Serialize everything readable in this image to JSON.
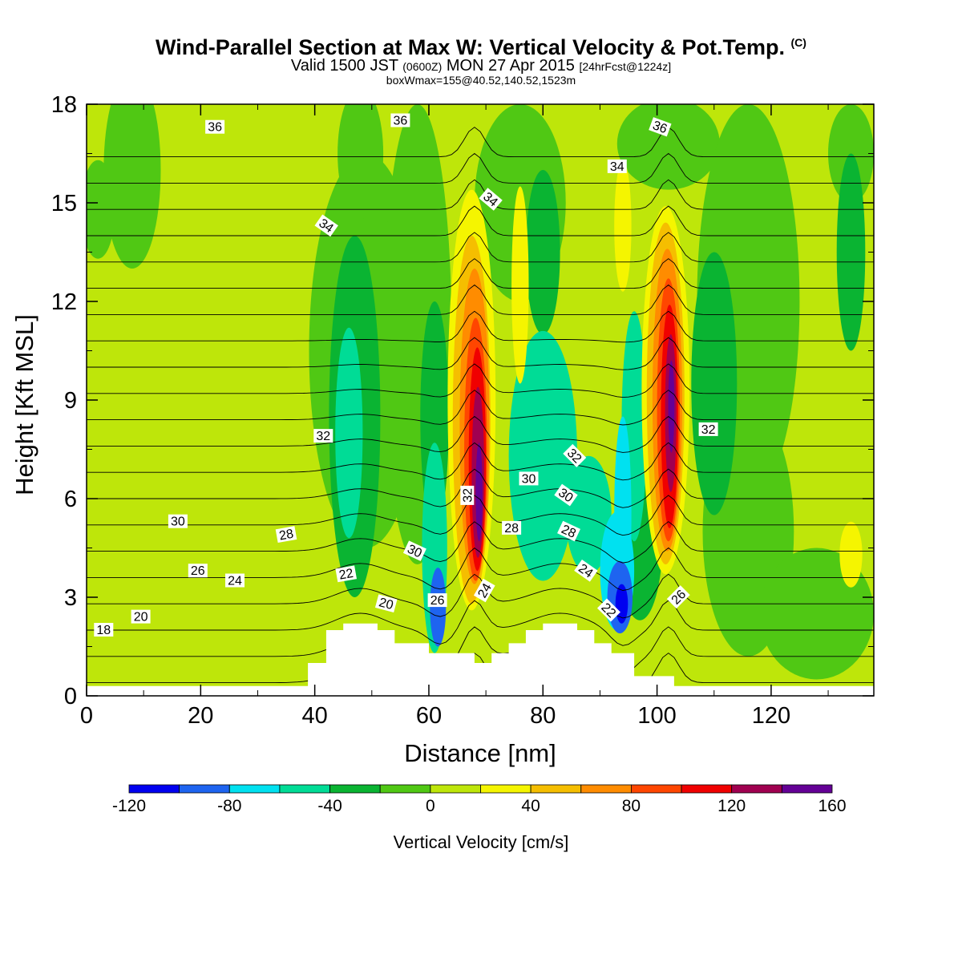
{
  "title": {
    "main": "Wind-Parallel Section at Max W: Vertical Velocity & Pot.Temp.",
    "copyright": "(C)",
    "valid_prefix": "Valid 1500 JST",
    "valid_utc": "(0600Z)",
    "valid_date": "MON 27 Apr 2015",
    "forecast": "[24hrFcst@1224z]",
    "box": "boxWmax=155@40.52,140.52,1523m"
  },
  "chart_data": {
    "type": "heatmap",
    "xlabel": "Distance [nm]",
    "ylabel": "Height [Kft MSL]",
    "xlim": [
      0,
      138
    ],
    "ylim": [
      0,
      18
    ],
    "x_ticks": [
      0,
      20,
      40,
      60,
      80,
      100,
      120
    ],
    "y_ticks": [
      0,
      3,
      6,
      9,
      12,
      15,
      18
    ],
    "grid": false,
    "colorbar": {
      "title": "Vertical Velocity [cm/s]",
      "levels": [
        -120,
        -100,
        -80,
        -60,
        -40,
        -20,
        0,
        20,
        40,
        60,
        80,
        100,
        120,
        140,
        160
      ],
      "tick_labels": [
        "-120",
        "-80",
        "-40",
        "0",
        "40",
        "80",
        "120",
        "160"
      ],
      "colors": [
        "#0000f0",
        "#1e64f0",
        "#00e1f0",
        "#00dc96",
        "#0ab432",
        "#50c814",
        "#bee60a",
        "#f5f500",
        "#f5be00",
        "#ff8c00",
        "#ff4600",
        "#f00000",
        "#a00050",
        "#640096"
      ]
    },
    "shaded_field": "vertical velocity (cm/s)",
    "contour_field": "potential temperature",
    "updraft_cores": [
      {
        "x": 68,
        "y_bottom": 3,
        "y_top": 15,
        "max": 160
      },
      {
        "x": 101.5,
        "y_bottom": 4.5,
        "y_top": 14.8,
        "max": 160
      }
    ],
    "downdraft_cores": [
      {
        "x": 62,
        "y": 2.5,
        "min": -110
      },
      {
        "x": 94,
        "y": 3,
        "min": -120
      }
    ],
    "terrain_kft": [
      [
        38.8,
        0.3
      ],
      [
        38.8,
        1.0
      ],
      [
        42,
        1.0
      ],
      [
        42,
        2.0
      ],
      [
        45,
        2.0
      ],
      [
        45,
        2.2
      ],
      [
        51,
        2.2
      ],
      [
        51,
        2.0
      ],
      [
        54,
        2.0
      ],
      [
        54,
        1.6
      ],
      [
        60,
        1.6
      ],
      [
        60,
        1.3
      ],
      [
        68,
        1.3
      ],
      [
        68,
        1.0
      ],
      [
        71,
        1.0
      ],
      [
        71,
        1.3
      ],
      [
        74,
        1.3
      ],
      [
        74,
        1.6
      ],
      [
        77,
        1.6
      ],
      [
        77,
        2.0
      ],
      [
        80,
        2.0
      ],
      [
        80,
        2.2
      ],
      [
        86,
        2.2
      ],
      [
        86,
        2.0
      ],
      [
        89,
        2.0
      ],
      [
        89,
        1.6
      ],
      [
        92,
        1.6
      ],
      [
        92,
        1.3
      ],
      [
        96,
        1.3
      ],
      [
        96,
        0.6
      ],
      [
        103,
        0.6
      ],
      [
        103,
        0.3
      ]
    ],
    "contour_labels": [
      {
        "text": "36",
        "x": 22.5,
        "y": 17.3,
        "angle": 0
      },
      {
        "text": "36",
        "x": 55,
        "y": 17.5,
        "angle": 0
      },
      {
        "text": "36",
        "x": 100.5,
        "y": 17.3,
        "angle": 20
      },
      {
        "text": "34",
        "x": 93,
        "y": 16.1,
        "angle": 0
      },
      {
        "text": "34",
        "x": 70.8,
        "y": 15.1,
        "angle": 40
      },
      {
        "text": "34",
        "x": 42,
        "y": 14.3,
        "angle": 35
      },
      {
        "text": "32",
        "x": 41.5,
        "y": 7.9,
        "angle": 0
      },
      {
        "text": "32",
        "x": 109,
        "y": 8.1,
        "angle": 0
      },
      {
        "text": "32",
        "x": 85.5,
        "y": 7.3,
        "angle": 45
      },
      {
        "text": "32",
        "x": 66.8,
        "y": 6.1,
        "angle": -90
      },
      {
        "text": "30",
        "x": 16,
        "y": 5.3,
        "angle": 0
      },
      {
        "text": "30",
        "x": 77.5,
        "y": 6.6,
        "angle": 0
      },
      {
        "text": "30",
        "x": 84,
        "y": 6.1,
        "angle": 35
      },
      {
        "text": "30",
        "x": 57.5,
        "y": 4.4,
        "angle": 25
      },
      {
        "text": "28",
        "x": 35,
        "y": 4.9,
        "angle": -10
      },
      {
        "text": "28",
        "x": 74.5,
        "y": 5.1,
        "angle": 0
      },
      {
        "text": "28",
        "x": 84.5,
        "y": 5.0,
        "angle": 25
      },
      {
        "text": "26",
        "x": 19.5,
        "y": 3.8,
        "angle": 0
      },
      {
        "text": "26",
        "x": 61.5,
        "y": 2.9,
        "angle": 0
      },
      {
        "text": "26",
        "x": 103.8,
        "y": 3.0,
        "angle": -45
      },
      {
        "text": "24",
        "x": 26,
        "y": 3.5,
        "angle": 0
      },
      {
        "text": "24",
        "x": 69.8,
        "y": 3.2,
        "angle": -60
      },
      {
        "text": "24",
        "x": 87.5,
        "y": 3.8,
        "angle": 35
      },
      {
        "text": "22",
        "x": 45.5,
        "y": 3.7,
        "angle": -10
      },
      {
        "text": "22",
        "x": 91.5,
        "y": 2.6,
        "angle": 45
      },
      {
        "text": "20",
        "x": 9.5,
        "y": 2.4,
        "angle": 0
      },
      {
        "text": "20",
        "x": 52.5,
        "y": 2.8,
        "angle": 15
      },
      {
        "text": "18",
        "x": 3,
        "y": 2.0,
        "angle": 0
      }
    ]
  }
}
